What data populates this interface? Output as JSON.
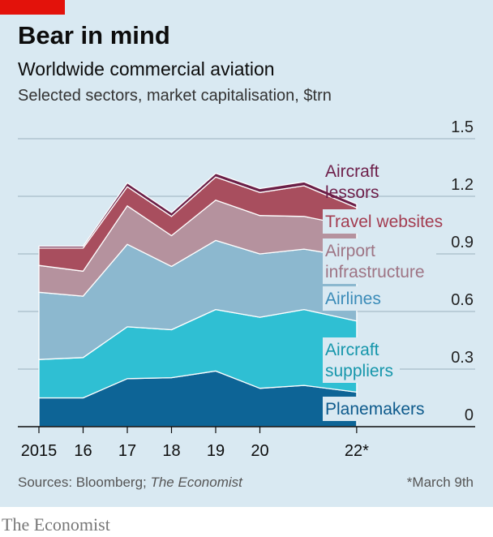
{
  "header": {
    "title": "Bear in mind",
    "subtitle": "Worldwide commercial aviation",
    "description": "Selected sectors, market capitalisation, $trn"
  },
  "footer": {
    "source_prefix": "Sources: Bloomberg; ",
    "source_italic": "The Economist",
    "note": "*March 9th",
    "brand": "The Economist"
  },
  "colors": {
    "panel": "#d9e9f2",
    "accent_red": "#e3120b"
  },
  "chart_data": {
    "type": "area",
    "stacked": true,
    "x": [
      2015,
      2016,
      2017,
      2018,
      2019,
      2020,
      2021,
      2022.19
    ],
    "x_tick_values": [
      2015,
      2016,
      2017,
      2018,
      2019,
      2020,
      2022.19
    ],
    "x_tick_labels": [
      "2015",
      "16",
      "17",
      "18",
      "19",
      "20",
      "22*"
    ],
    "ylim": [
      0,
      1.5
    ],
    "y_ticks": [
      0,
      0.3,
      0.6,
      0.9,
      1.2,
      1.5
    ],
    "y_tick_labels": [
      "0",
      "0.3",
      "0.6",
      "0.9",
      "1.2",
      "1.5"
    ],
    "grid": true,
    "legend_placement": "right, inline labels",
    "series": [
      {
        "name": "Planemakers",
        "color": "#0d6496",
        "label_color": "#0d5a8c",
        "label_lines": [
          "Planemakers"
        ],
        "values": [
          0.15,
          0.15,
          0.25,
          0.255,
          0.29,
          0.2,
          0.215,
          0.18
        ]
      },
      {
        "name": "Aircraft suppliers",
        "color": "#2fbfd3",
        "label_color": "#1596ab",
        "label_lines": [
          "Aircraft",
          "suppliers"
        ],
        "values": [
          0.2,
          0.21,
          0.27,
          0.25,
          0.32,
          0.37,
          0.395,
          0.37
        ]
      },
      {
        "name": "Airlines",
        "color": "#8cb8cf",
        "label_color": "#3a8bb8",
        "label_lines": [
          "Airlines"
        ],
        "values": [
          0.35,
          0.32,
          0.43,
          0.33,
          0.36,
          0.33,
          0.315,
          0.33
        ]
      },
      {
        "name": "Airport infrastructure",
        "color": "#b5929e",
        "label_color": "#9e7484",
        "label_lines": [
          "Airport",
          "infrastructure"
        ],
        "values": [
          0.14,
          0.13,
          0.2,
          0.16,
          0.21,
          0.2,
          0.17,
          0.16
        ]
      },
      {
        "name": "Travel websites",
        "color": "#a84e5e",
        "label_color": "#a33c50",
        "label_lines": [
          "Travel websites"
        ],
        "values": [
          0.09,
          0.12,
          0.1,
          0.1,
          0.12,
          0.12,
          0.16,
          0.1
        ]
      },
      {
        "name": "Aircraft lessors",
        "color": "#6b1f47",
        "label_color": "#6e1f4a",
        "label_lines": [
          "Aircraft",
          "lessors"
        ],
        "values": [
          0.01,
          0.01,
          0.02,
          0.02,
          0.02,
          0.02,
          0.02,
          0.02
        ]
      }
    ]
  }
}
